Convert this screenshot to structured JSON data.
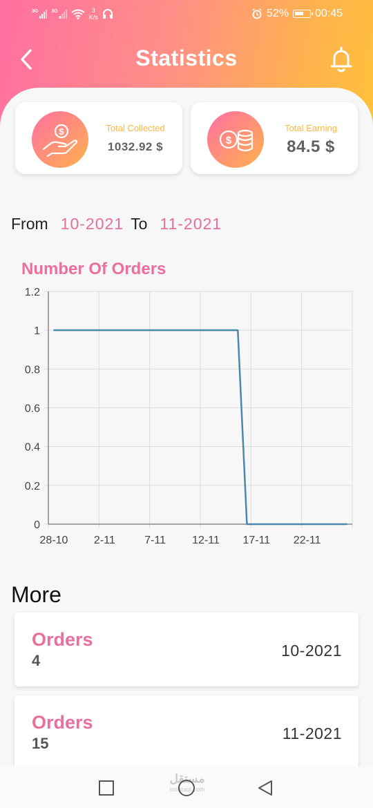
{
  "status_bar": {
    "network_1": "3G",
    "network_2": "3G",
    "speed_value": "3",
    "speed_unit": "K/s",
    "battery": "52%",
    "time": "00:45"
  },
  "app_bar": {
    "title": "Statistics"
  },
  "summary": {
    "total_collected": {
      "label": "Total Collected",
      "value": "1032.92 $"
    },
    "total_earning": {
      "label": "Total Earning",
      "value": "84.5 $"
    }
  },
  "date_range": {
    "from_label": "From",
    "from_value": "10-2021",
    "to_label": "To",
    "to_value": "11-2021"
  },
  "chart_data": {
    "type": "line",
    "title": "Number Of Orders",
    "xlabel": "",
    "ylabel": "",
    "x_ticks": [
      "28-10",
      "2-11",
      "7-11",
      "12-11",
      "17-11",
      "22-11"
    ],
    "x_domain": [
      0,
      30
    ],
    "ylim": [
      0,
      1.2
    ],
    "y_ticks": [
      0,
      0.2,
      0.4,
      0.6,
      0.8,
      1,
      1.2
    ],
    "y_tick_labels": [
      "0",
      "0.2",
      "0.4",
      "0.6",
      "0.8",
      "1",
      "1.2"
    ],
    "grid": true,
    "line_color": "#4a86ad",
    "series": [
      {
        "x": [
          0.5,
          18.7,
          19.6,
          29.5
        ],
        "y": [
          1,
          1,
          0,
          0
        ]
      }
    ]
  },
  "more": {
    "title": "More",
    "orders": [
      {
        "label": "Orders",
        "count": "4",
        "period": "10-2021"
      },
      {
        "label": "Orders",
        "count": "15",
        "period": "11-2021"
      }
    ]
  },
  "watermark": {
    "arabic": "مستقل",
    "domain": "mostaql.com"
  },
  "colors": {
    "accent_pink": "#ea6f9c",
    "accent_orange": "#ffb24e",
    "label_gold": "#ffb83d"
  }
}
